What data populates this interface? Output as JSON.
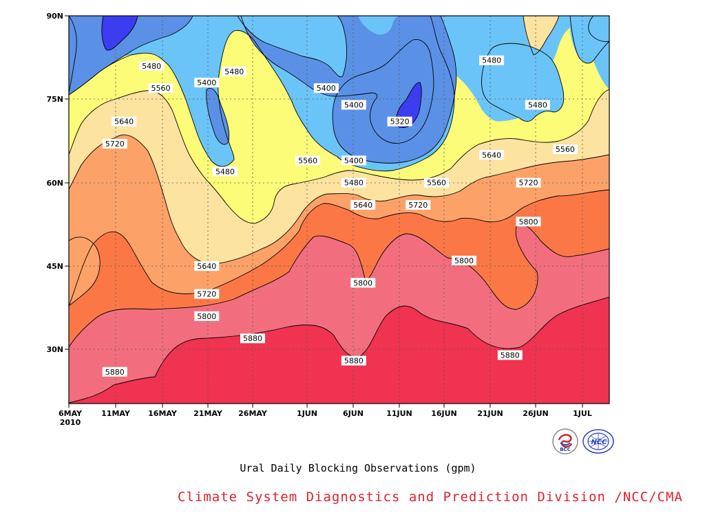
{
  "chart_data": {
    "type": "contour",
    "title": "",
    "xlabel": "",
    "ylabel": "",
    "x_tick_labels": [
      "6MAY",
      "11MAY",
      "16MAY",
      "21MAY",
      "26MAY",
      "1JUN",
      "6JUN",
      "11JUN",
      "16JUN",
      "21JUN",
      "26JUN",
      "1JUL"
    ],
    "x_year_label": "2010",
    "y_tick_labels": [
      "90N",
      "75N",
      "60N",
      "45N",
      "30N"
    ],
    "ylim": [
      "20N",
      "90N"
    ],
    "levels": [
      5320,
      5400,
      5480,
      5560,
      5640,
      5720,
      5800,
      5880
    ],
    "contour_labels": [
      {
        "value": "5480",
        "date": "15MAY",
        "lat": "81N"
      },
      {
        "value": "5480",
        "date": "24MAY",
        "lat": "80N"
      },
      {
        "value": "5400",
        "date": "21MAY",
        "lat": "78N"
      },
      {
        "value": "5560",
        "date": "16MAY",
        "lat": "77N"
      },
      {
        "value": "5640",
        "date": "12MAY",
        "lat": "71N"
      },
      {
        "value": "5720",
        "date": "11MAY",
        "lat": "67N"
      },
      {
        "value": "5480",
        "date": "23MAY",
        "lat": "62N"
      },
      {
        "value": "5400",
        "date": "3JUN",
        "lat": "77N"
      },
      {
        "value": "5400",
        "date": "6JUN",
        "lat": "74N"
      },
      {
        "value": "5320",
        "date": "11JUN",
        "lat": "71N"
      },
      {
        "value": "5560",
        "date": "1JUN",
        "lat": "64N"
      },
      {
        "value": "5400",
        "date": "6JUN",
        "lat": "64N"
      },
      {
        "value": "5480",
        "date": "6JUN",
        "lat": "60N"
      },
      {
        "value": "5560",
        "date": "15JUN",
        "lat": "60N"
      },
      {
        "value": "5640",
        "date": "7JUN",
        "lat": "56N"
      },
      {
        "value": "5720",
        "date": "13JUN",
        "lat": "56N"
      },
      {
        "value": "5480",
        "date": "21JUN",
        "lat": "82N"
      },
      {
        "value": "5480",
        "date": "26JUN",
        "lat": "74N"
      },
      {
        "value": "5640",
        "date": "21JUN",
        "lat": "65N"
      },
      {
        "value": "5720",
        "date": "25JUN",
        "lat": "60N"
      },
      {
        "value": "5560",
        "date": "29JUN",
        "lat": "66N"
      },
      {
        "value": "5800",
        "date": "25JUN",
        "lat": "53N"
      },
      {
        "value": "5640",
        "date": "21MAY",
        "lat": "45N"
      },
      {
        "value": "5720",
        "date": "21MAY",
        "lat": "40N"
      },
      {
        "value": "5800",
        "date": "21MAY",
        "lat": "36N"
      },
      {
        "value": "5880",
        "date": "26MAY",
        "lat": "32N"
      },
      {
        "value": "5800",
        "date": "7JUN",
        "lat": "42N"
      },
      {
        "value": "5800",
        "date": "18JUN",
        "lat": "46N"
      },
      {
        "value": "5880",
        "date": "11MAY",
        "lat": "26N"
      },
      {
        "value": "5880",
        "date": "6JUN",
        "lat": "28N"
      },
      {
        "value": "5880",
        "date": "23JUN",
        "lat": "29N"
      }
    ],
    "fill_colors": {
      "lt5320": "#3c3cf0",
      "5320_5400": "#5a91e6",
      "5400_5480": "#6bc4f8",
      "5480_5560": "#fcfc78",
      "5560_5640": "#fde3a0",
      "5640_5720": "#fca269",
      "5720_5800": "#fb7846",
      "5800_5880": "#f26e7e",
      "gt5880": "#ef3350"
    },
    "grid": true
  },
  "caption": "Ural Daily Blocking Observations (gpm)",
  "credit": "Climate System Diagnostics and Prediction Division /NCC/CMA",
  "credit_color": "#e0202a",
  "logos": [
    {
      "text": "BCC",
      "icon": "bcc-logo"
    },
    {
      "text": "NCC",
      "icon": "ncc-logo"
    }
  ]
}
